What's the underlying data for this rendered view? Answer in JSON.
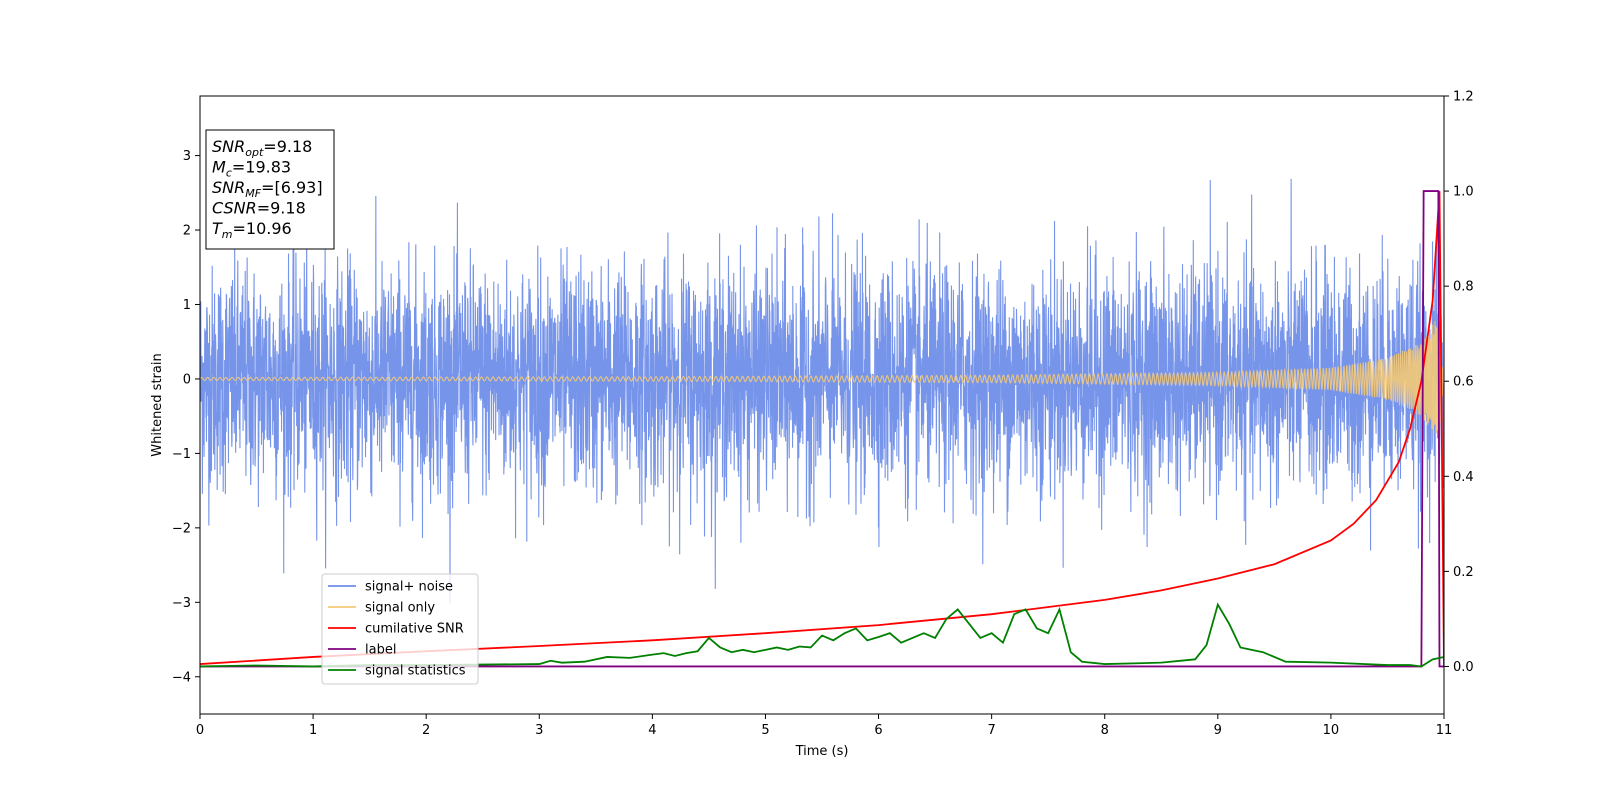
{
  "chart_data": {
    "type": "line",
    "xlabel": "Time (s)",
    "ylabel": "Whitened strain",
    "xlim": [
      0,
      11
    ],
    "ylim": [
      -4.5,
      3.8
    ],
    "y2lim": [
      -0.1,
      1.2
    ],
    "x_ticks": [
      0,
      1,
      2,
      3,
      4,
      5,
      6,
      7,
      8,
      9,
      10,
      11
    ],
    "y_ticks": [
      -4,
      -3,
      -2,
      -1,
      0,
      1,
      2,
      3
    ],
    "y2_ticks": [
      0.0,
      0.2,
      0.4,
      0.6,
      0.8,
      1.0,
      1.2
    ],
    "x_tick_labels": [
      "0",
      "1",
      "2",
      "3",
      "4",
      "5",
      "6",
      "7",
      "8",
      "9",
      "10",
      "11"
    ],
    "y_tick_labels": [
      "−4",
      "−3",
      "−2",
      "−1",
      "0",
      "1",
      "2",
      "3"
    ],
    "y2_tick_labels": [
      "0.0",
      "0.2",
      "0.4",
      "0.6",
      "0.8",
      "1.0",
      "1.2"
    ],
    "legend_position": "lower-left",
    "grid": false,
    "info_box": [
      {
        "base": "SNR",
        "sub": "opt",
        "value": "=9.18"
      },
      {
        "base": "M",
        "sub": "c",
        "value": "=19.83"
      },
      {
        "base": "SNR",
        "sub": "MF",
        "value": "=[6.93]"
      },
      {
        "base": "CSNR",
        "sub": "",
        "value": "=9.18"
      },
      {
        "base": "T",
        "sub": "m",
        "value": "=10.96"
      }
    ],
    "series": [
      {
        "name": "signal+ noise",
        "color": "#6f8ee8",
        "axis": "left",
        "style": "noise",
        "amplitude_sigma": 0.75,
        "x_range": [
          0,
          11
        ]
      },
      {
        "name": "signal only",
        "color": "#f5c978",
        "axis": "left",
        "style": "chirp",
        "x_range": [
          0,
          11
        ],
        "envelope": {
          "x": [
            0,
            4,
            7,
            9,
            10,
            10.5,
            10.8,
            10.95,
            11
          ],
          "y": [
            0.02,
            0.03,
            0.05,
            0.09,
            0.15,
            0.28,
            0.5,
            0.85,
            0.0
          ]
        }
      },
      {
        "name": "cumilative SNR",
        "color": "#ff0000",
        "axis": "right",
        "x": [
          0,
          1,
          2,
          3,
          4,
          5,
          6,
          7,
          8,
          8.5,
          9,
          9.5,
          10,
          10.2,
          10.4,
          10.6,
          10.7,
          10.8,
          10.9,
          10.96,
          11
        ],
        "y": [
          0.005,
          0.02,
          0.032,
          0.043,
          0.055,
          0.07,
          0.087,
          0.11,
          0.14,
          0.16,
          0.185,
          0.215,
          0.265,
          0.3,
          0.35,
          0.43,
          0.5,
          0.6,
          0.77,
          1.0,
          0.0
        ]
      },
      {
        "name": "label",
        "color": "#800080",
        "axis": "right",
        "x": [
          0,
          10.8,
          10.82,
          10.95,
          10.96,
          11
        ],
        "y": [
          0,
          0,
          1,
          1,
          0,
          0
        ]
      },
      {
        "name": "signal statistics",
        "color": "#008000",
        "axis": "right",
        "x": [
          0,
          0.5,
          1,
          1.5,
          2,
          2.5,
          3,
          3.1,
          3.2,
          3.4,
          3.6,
          3.8,
          4,
          4.1,
          4.2,
          4.3,
          4.4,
          4.5,
          4.6,
          4.7,
          4.8,
          4.9,
          5,
          5.1,
          5.2,
          5.3,
          5.4,
          5.5,
          5.6,
          5.7,
          5.8,
          5.9,
          6,
          6.1,
          6.2,
          6.3,
          6.4,
          6.5,
          6.6,
          6.7,
          6.8,
          6.9,
          7,
          7.1,
          7.2,
          7.3,
          7.4,
          7.5,
          7.6,
          7.7,
          7.8,
          8,
          8.5,
          8.8,
          8.9,
          9,
          9.1,
          9.2,
          9.3,
          9.4,
          9.6,
          10,
          10.5,
          10.7,
          10.8,
          10.9,
          11
        ],
        "y": [
          0.0,
          0.002,
          0.0,
          0.003,
          0.003,
          0.004,
          0.005,
          0.012,
          0.008,
          0.01,
          0.02,
          0.018,
          0.025,
          0.028,
          0.022,
          0.028,
          0.032,
          0.06,
          0.04,
          0.03,
          0.035,
          0.03,
          0.035,
          0.04,
          0.035,
          0.042,
          0.04,
          0.065,
          0.055,
          0.07,
          0.08,
          0.055,
          0.062,
          0.07,
          0.05,
          0.06,
          0.07,
          0.06,
          0.1,
          0.12,
          0.09,
          0.06,
          0.07,
          0.05,
          0.11,
          0.12,
          0.08,
          0.07,
          0.12,
          0.03,
          0.01,
          0.005,
          0.008,
          0.015,
          0.045,
          0.13,
          0.09,
          0.04,
          0.035,
          0.03,
          0.01,
          0.008,
          0.003,
          0.003,
          0.0,
          0.015,
          0.02
        ]
      }
    ]
  }
}
